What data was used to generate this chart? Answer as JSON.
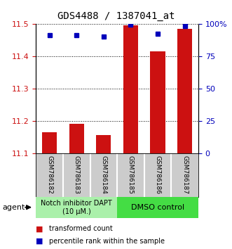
{
  "title": "GDS4488 / 1387041_at",
  "samples": [
    "GSM786182",
    "GSM786183",
    "GSM786184",
    "GSM786185",
    "GSM786186",
    "GSM786187"
  ],
  "red_values": [
    11.165,
    11.19,
    11.155,
    11.495,
    11.415,
    11.485
  ],
  "blue_values": [
    11.465,
    11.465,
    11.46,
    11.497,
    11.468,
    11.492
  ],
  "ylim_left": [
    11.1,
    11.5
  ],
  "ylim_right": [
    0,
    100
  ],
  "yticks_left": [
    11.1,
    11.2,
    11.3,
    11.4,
    11.5
  ],
  "yticks_right": [
    0,
    25,
    50,
    75,
    100
  ],
  "ytick_labels_right": [
    "0",
    "25",
    "50",
    "75",
    "100%"
  ],
  "bar_bottom": 11.1,
  "group1_label": "Notch inhibitor DAPT\n(10 μM.)",
  "group2_label": "DMSO control",
  "group1_color": "#aaf0aa",
  "group2_color": "#44dd44",
  "bar_color": "#cc1111",
  "dot_color": "#0000bb",
  "agent_label": "agent",
  "legend1": "transformed count",
  "legend2": "percentile rank within the sample",
  "title_fontsize": 10,
  "tick_label_color_left": "#cc1111",
  "tick_label_color_right": "#0000bb",
  "grid_color": "black",
  "label_bg_color": "#cccccc"
}
